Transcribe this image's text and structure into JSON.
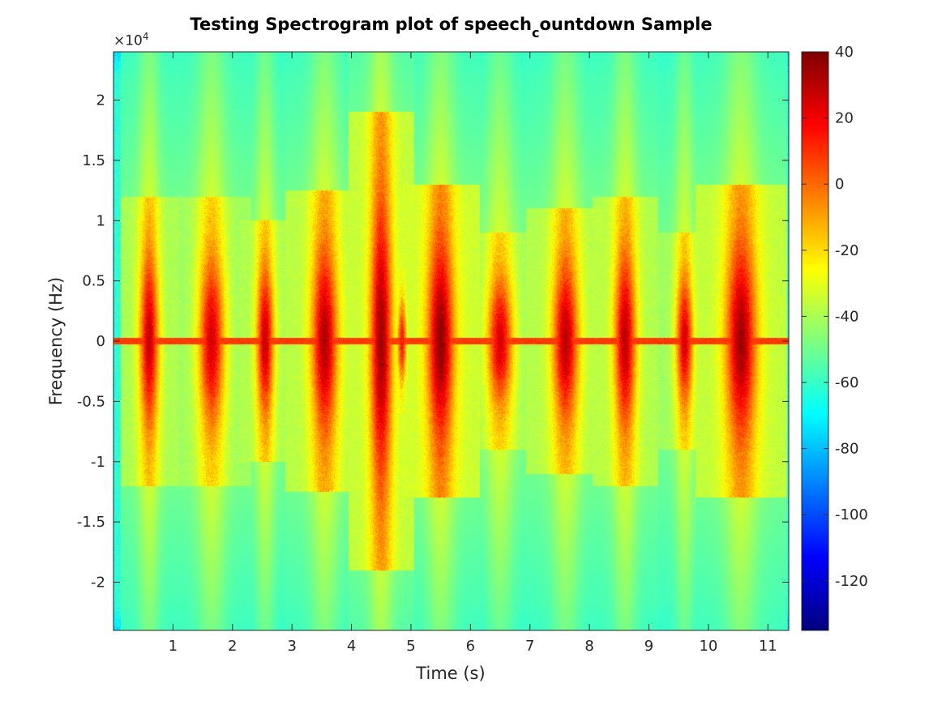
{
  "chart_data": {
    "type": "heatmap",
    "title_main": "Testing Spectrogram plot of speech",
    "title_subscript": "c",
    "title_rest": "ountdown Sample",
    "xlabel": "Time (s)",
    "ylabel": "Frequency (Hz)",
    "y_exponent_base": "×10",
    "y_exponent_power": "4",
    "x_range": [
      0,
      11.35
    ],
    "y_range": [
      -2.4,
      2.4
    ],
    "x_ticks": [
      1,
      2,
      3,
      4,
      5,
      6,
      7,
      8,
      9,
      10,
      11
    ],
    "x_tick_labels": [
      "1",
      "2",
      "3",
      "4",
      "5",
      "6",
      "7",
      "8",
      "9",
      "10",
      "11"
    ],
    "y_ticks": [
      -2,
      -1.5,
      -1,
      -0.5,
      0,
      0.5,
      1,
      1.5,
      2
    ],
    "y_tick_labels": [
      "-2",
      "-1.5",
      "-1",
      "-0.5",
      "0",
      "0.5",
      "1",
      "1.5",
      "2"
    ],
    "colormap": "jet",
    "color_range": [
      -135,
      40
    ],
    "colorbar_ticks": [
      40,
      20,
      0,
      -20,
      -40,
      -60,
      -80,
      -100,
      -120
    ],
    "colorbar_tick_labels": [
      "40",
      "20",
      "0",
      "-20",
      "-40",
      "-60",
      "-80",
      "-100",
      "-120"
    ],
    "background_level_db": -62,
    "dc_line": {
      "frequency": 0,
      "level_db": 8
    },
    "speech_bursts": [
      {
        "center_s": 0.6,
        "width_s": 0.22,
        "peak_db": 28,
        "max_freq": 1.2
      },
      {
        "center_s": 1.65,
        "width_s": 0.3,
        "peak_db": 25,
        "max_freq": 1.2
      },
      {
        "center_s": 2.55,
        "width_s": 0.2,
        "peak_db": 28,
        "max_freq": 1.0
      },
      {
        "center_s": 3.55,
        "width_s": 0.3,
        "peak_db": 32,
        "max_freq": 1.25
      },
      {
        "center_s": 4.5,
        "width_s": 0.25,
        "peak_db": 35,
        "max_freq": 1.9
      },
      {
        "center_s": 4.85,
        "width_s": 0.12,
        "peak_db": 15,
        "max_freq": 0.6
      },
      {
        "center_s": 5.5,
        "width_s": 0.3,
        "peak_db": 38,
        "max_freq": 1.3
      },
      {
        "center_s": 6.5,
        "width_s": 0.3,
        "peak_db": 25,
        "max_freq": 0.9
      },
      {
        "center_s": 7.6,
        "width_s": 0.3,
        "peak_db": 30,
        "max_freq": 1.1
      },
      {
        "center_s": 8.6,
        "width_s": 0.25,
        "peak_db": 30,
        "max_freq": 1.2
      },
      {
        "center_s": 9.6,
        "width_s": 0.2,
        "peak_db": 25,
        "max_freq": 0.9
      },
      {
        "center_s": 10.55,
        "width_s": 0.35,
        "peak_db": 35,
        "max_freq": 1.3
      }
    ]
  }
}
